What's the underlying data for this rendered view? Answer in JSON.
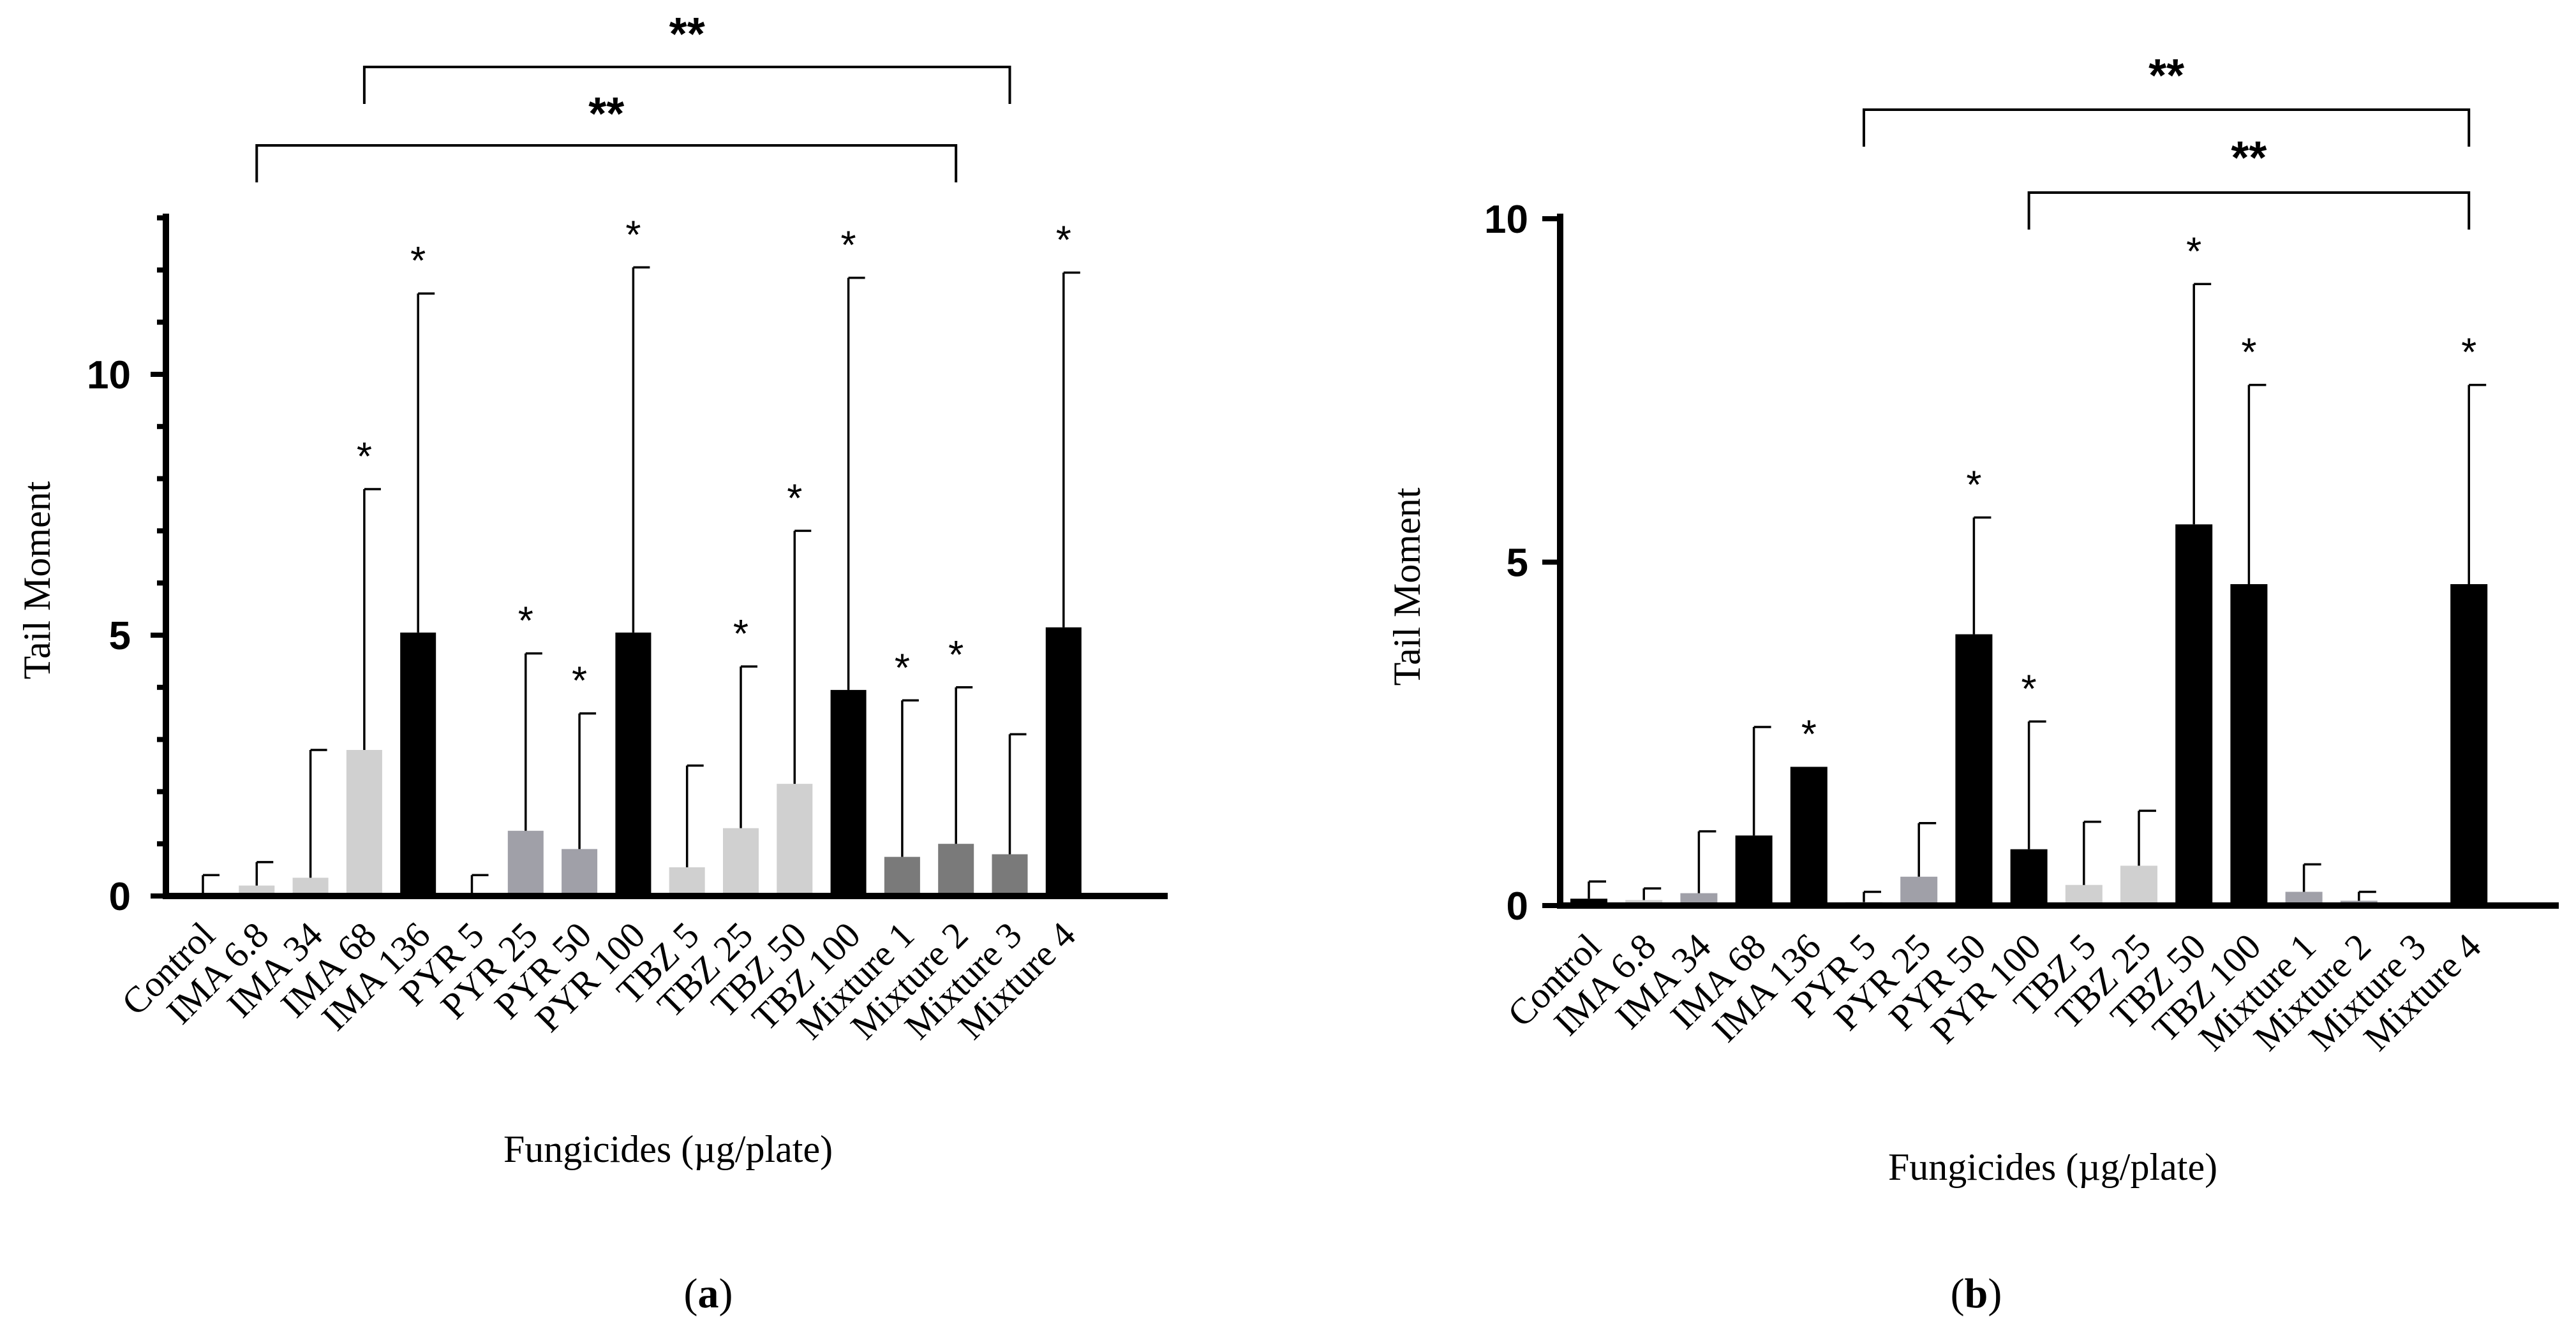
{
  "chart_data": [
    {
      "type": "bar",
      "panel_label": "a",
      "xlabel": "Fungicides (µg/plate)",
      "ylabel": "Tail Moment",
      "ylim": [
        0,
        13
      ],
      "yticks": [
        0,
        5,
        10
      ],
      "categories": [
        "Control",
        "IMA 6.8",
        "IMA 34",
        "IMA 68",
        "IMA 136",
        "PYR 5",
        "PYR 25",
        "PYR 50",
        "PYR 100",
        "TBZ 5",
        "TBZ 25",
        "TBZ 50",
        "TBZ 100",
        "Mixture 1",
        "Mixture 2",
        "Mixture 3",
        "Mixture 4"
      ],
      "values": [
        0.05,
        0.2,
        0.35,
        2.8,
        5.05,
        0.05,
        1.25,
        0.9,
        5.05,
        0.55,
        1.3,
        2.15,
        3.95,
        0.75,
        1.0,
        0.8,
        5.15
      ],
      "errors": [
        0.4,
        0.65,
        2.8,
        7.8,
        11.55,
        0.4,
        4.65,
        3.5,
        12.05,
        2.5,
        4.4,
        7.0,
        11.85,
        3.75,
        4.0,
        3.1,
        11.95
      ],
      "colors": [
        "#000000",
        "#d0d0d0",
        "#d0d0d0",
        "#d0d0d0",
        "#000000",
        "#000000",
        "#a0a0a8",
        "#a0a0a8",
        "#000000",
        "#d0d0d0",
        "#d0d0d0",
        "#d0d0d0",
        "#000000",
        "#7a7a7a",
        "#7a7a7a",
        "#7a7a7a",
        "#000000"
      ],
      "significance": [
        "",
        "",
        "",
        "*",
        "*",
        "",
        "*",
        "*",
        "*",
        "",
        "*",
        "*",
        "*",
        "*",
        "*",
        "",
        "*"
      ],
      "brackets": [
        {
          "from": 1,
          "to": 14,
          "label": "**"
        },
        {
          "from": 3,
          "to": 15,
          "label": "**"
        }
      ]
    },
    {
      "type": "bar",
      "panel_label": "b",
      "xlabel": "Fungicides (µg/plate)",
      "ylabel": "Tail Moment",
      "ylim": [
        0,
        10
      ],
      "yticks": [
        0,
        5,
        10
      ],
      "categories": [
        "Control",
        "IMA 6.8",
        "IMA 34",
        "IMA 68",
        "IMA 136",
        "PYR 5",
        "PYR 25",
        "PYR 50",
        "PYR 100",
        "TBZ 5",
        "TBZ 25",
        "TBZ 50",
        "TBZ 100",
        "Mixture 1",
        "Mixture 2",
        "Mixture 3",
        "Mixture 4"
      ],
      "values": [
        0.1,
        0.08,
        0.18,
        1.02,
        2.02,
        0.05,
        0.42,
        3.95,
        0.82,
        0.3,
        0.58,
        5.55,
        4.68,
        0.2,
        0.07,
        0.03,
        4.68
      ],
      "errors": [
        0.35,
        0.25,
        1.08,
        2.6,
        2.02,
        0.2,
        1.2,
        5.65,
        2.68,
        1.22,
        1.38,
        9.05,
        7.58,
        0.6,
        0.2,
        0.03,
        7.58
      ],
      "colors": [
        "#000000",
        "#d0d0d0",
        "#a0a0a8",
        "#000000",
        "#000000",
        "#d0d0d0",
        "#a0a0a8",
        "#000000",
        "#000000",
        "#d0d0d0",
        "#d0d0d0",
        "#000000",
        "#000000",
        "#a0a0a8",
        "#a0a0a8",
        "#000000",
        "#000000"
      ],
      "significance": [
        "",
        "",
        "",
        "",
        "*",
        "",
        "",
        "*",
        "*",
        "",
        "",
        "*",
        "*",
        "",
        "",
        "",
        "*"
      ],
      "brackets": [
        {
          "from": 5,
          "to": 16,
          "label": "**"
        },
        {
          "from": 8,
          "to": 16,
          "label": "**"
        }
      ]
    }
  ]
}
